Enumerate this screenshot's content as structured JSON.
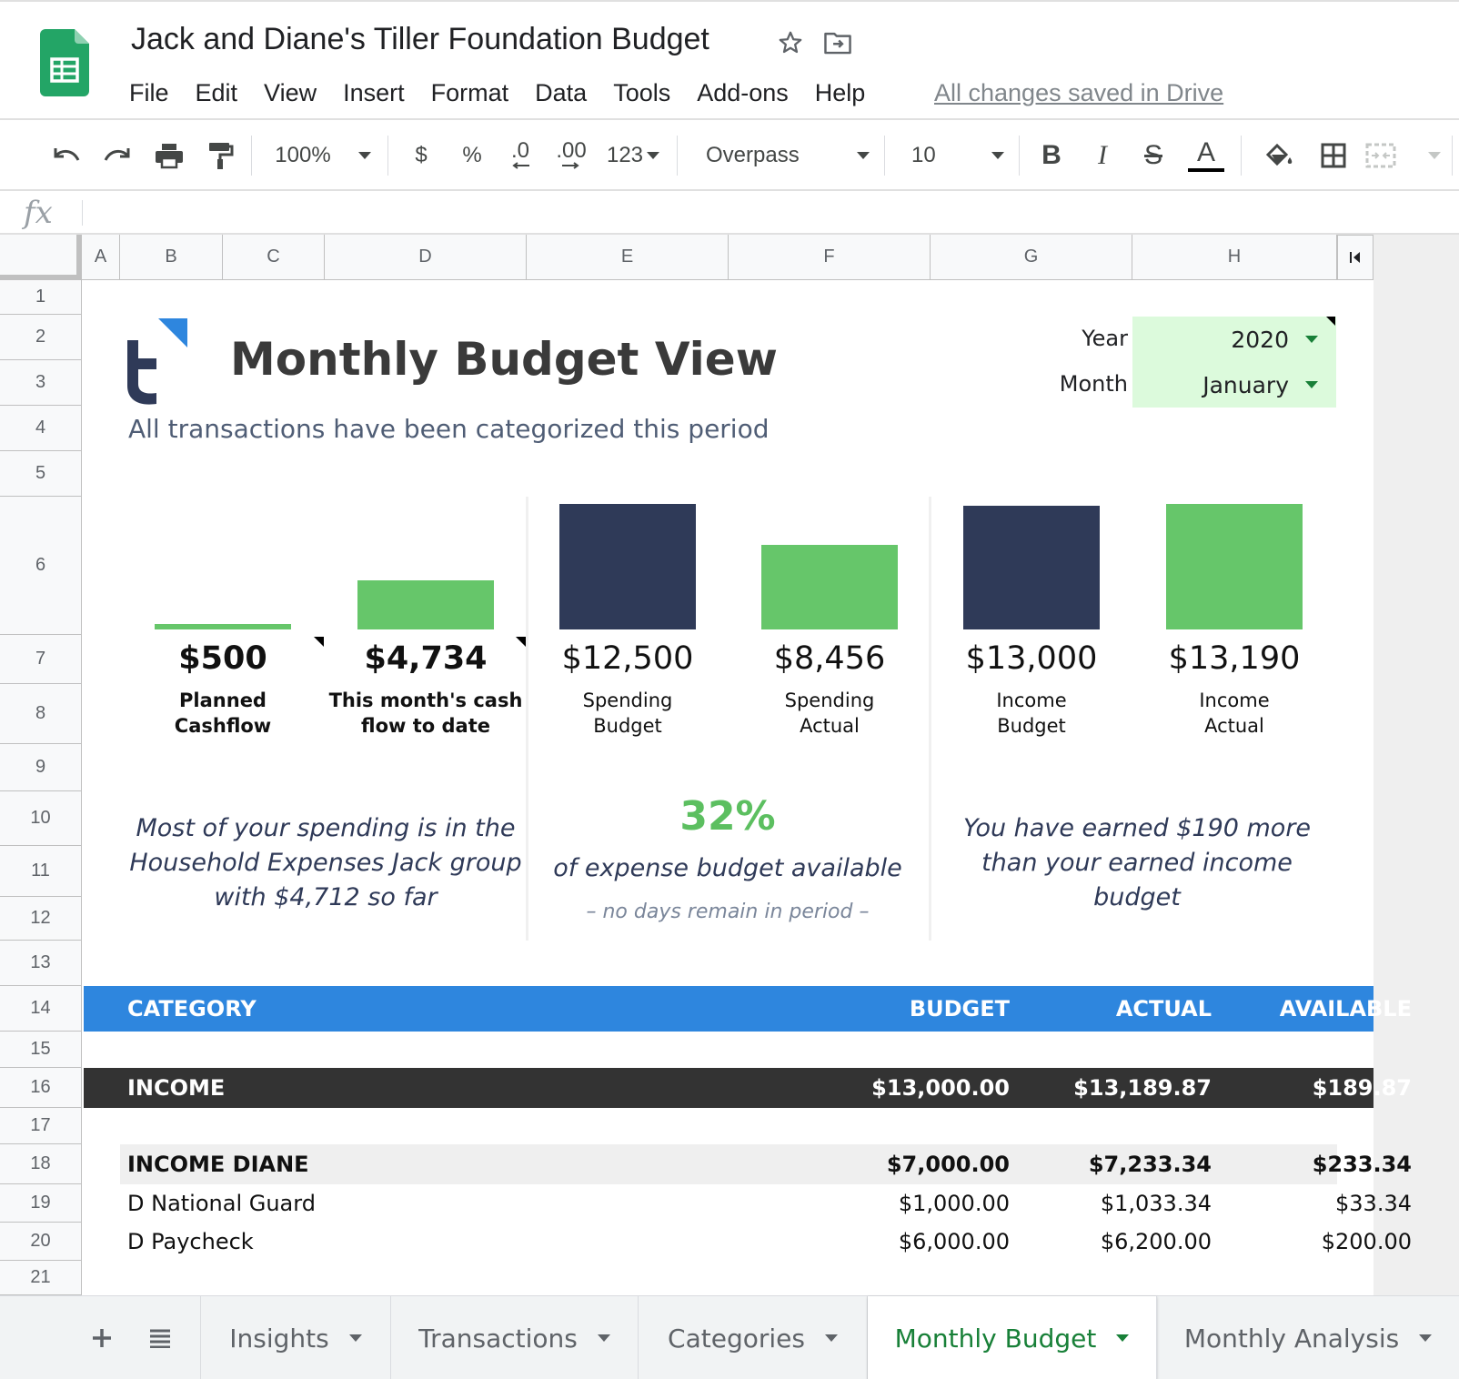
{
  "app": {
    "document_title": "Jack and Diane's Tiller Foundation Budget",
    "menu": [
      "File",
      "Edit",
      "View",
      "Insert",
      "Format",
      "Data",
      "Tools",
      "Add-ons",
      "Help"
    ],
    "save_status": "All changes saved in Drive"
  },
  "toolbar": {
    "zoom": "100%",
    "currency": "$",
    "percent": "%",
    "decrease_decimal": ".0",
    "increase_decimal": ".00",
    "more_formats": "123",
    "font_family": "Overpass",
    "font_size": "10",
    "bold": "B",
    "italic": "I",
    "strikethrough": "S",
    "text_color": "A"
  },
  "formula_bar": {
    "fx": "fx",
    "value": ""
  },
  "columns": [
    "A",
    "B",
    "C",
    "D",
    "E",
    "F",
    "G",
    "H"
  ],
  "rows": [
    "1",
    "2",
    "3",
    "4",
    "5",
    "6",
    "7",
    "8",
    "9",
    "10",
    "11",
    "12",
    "13",
    "14",
    "15",
    "16",
    "17",
    "18",
    "19",
    "20",
    "21"
  ],
  "sheet": {
    "title": "Monthly Budget View",
    "subtitle": "All transactions have been categorized this period",
    "year_label": "Year",
    "year_value": "2020",
    "month_label": "Month",
    "month_value": "January",
    "kpis": [
      {
        "value": "$500",
        "label_line1": "Planned",
        "label_line2": "Cashflow",
        "bar_color": "#66c66a"
      },
      {
        "value": "$4,734",
        "label_line1": "This month's cash",
        "label_line2": "flow to date",
        "bar_color": "#66c66a"
      },
      {
        "value": "$12,500",
        "label_line1": "Spending",
        "label_line2": "Budget",
        "bar_color": "#2f3a58"
      },
      {
        "value": "$8,456",
        "label_line1": "Spending",
        "label_line2": "Actual",
        "bar_color": "#66c66a"
      },
      {
        "value": "$13,000",
        "label_line1": "Income",
        "label_line2": "Budget",
        "bar_color": "#2f3a58"
      },
      {
        "value": "$13,190",
        "label_line1": "Income",
        "label_line2": "Actual",
        "bar_color": "#66c66a"
      }
    ],
    "insight_left": [
      "Most of your spending is in the",
      "Household Expenses Jack group",
      "with $4,712 so far"
    ],
    "budget_available_pct": "32%",
    "budget_available_text": "of expense budget available",
    "days_remaining_note": "– no days remain in period –",
    "insight_right": [
      "You have earned $190 more",
      "than your earned income",
      "budget"
    ]
  },
  "table": {
    "headers": {
      "category": "CATEGORY",
      "budget": "BUDGET",
      "actual": "ACTUAL",
      "available": "AVAILABLE"
    },
    "income": {
      "category": "INCOME",
      "budget": "$13,000.00",
      "actual": "$13,189.87",
      "available": "$189.87"
    },
    "group": {
      "category": "INCOME DIANE",
      "budget": "$7,000.00",
      "actual": "$7,233.34",
      "available": "$233.34"
    },
    "lines": [
      {
        "category": "D National Guard",
        "budget": "$1,000.00",
        "actual": "$1,033.34",
        "available": "$33.34"
      },
      {
        "category": "D Paycheck",
        "budget": "$6,000.00",
        "actual": "$6,200.00",
        "available": "$200.00"
      }
    ]
  },
  "tabs": [
    "Insights",
    "Transactions",
    "Categories",
    "Monthly Budget",
    "Monthly Analysis"
  ],
  "active_tab": "Monthly Budget",
  "colors": {
    "accent_green": "#66c66a",
    "navy": "#2f3a58",
    "header_blue": "#2e86de",
    "income_row": "#333333",
    "selector_bg": "#dcfadc"
  }
}
